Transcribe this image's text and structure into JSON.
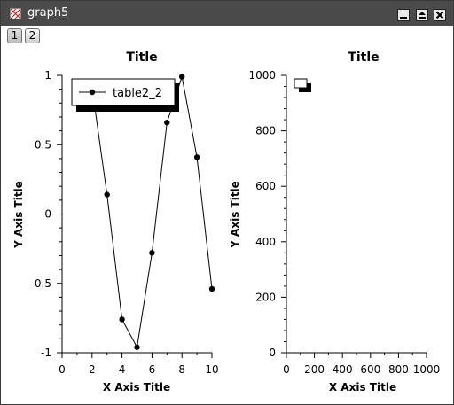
{
  "window": {
    "title": "graph5",
    "buttons": {
      "minimize": "minimize-icon",
      "maximize": "maximize-icon",
      "close": "close-icon"
    }
  },
  "toolbar": {
    "layer_buttons": [
      {
        "label": "1",
        "active": true
      },
      {
        "label": "2",
        "active": false
      }
    ]
  },
  "chart_data": [
    {
      "type": "line",
      "title": "Title",
      "xlabel": "X Axis Title",
      "ylabel": "Y Axis Title",
      "xlim": [
        0,
        10
      ],
      "ylim": [
        -1,
        1
      ],
      "xticks": [
        "0",
        "2",
        "4",
        "6",
        "8",
        "10"
      ],
      "yticks": [
        "-1",
        "-0.5",
        "0",
        "0.5",
        "1"
      ],
      "legend": {
        "placement": "top-left",
        "entries": [
          "table2_2"
        ]
      },
      "series": [
        {
          "name": "table2_2",
          "marker": "circle",
          "color": "#000000",
          "x": [
            2,
            3,
            4,
            5,
            6,
            7,
            8,
            9,
            10
          ],
          "y": [
            0.91,
            0.14,
            -0.76,
            -0.96,
            -0.28,
            0.66,
            0.99,
            0.41,
            -0.54
          ]
        }
      ]
    },
    {
      "type": "line",
      "title": "Title",
      "xlabel": "X Axis Title",
      "ylabel": "Y Axis Title",
      "xlim": [
        0,
        1000
      ],
      "ylim": [
        0,
        1000
      ],
      "xticks": [
        "0",
        "200",
        "400",
        "600",
        "800",
        "1000"
      ],
      "yticks": [
        "0",
        "200",
        "400",
        "600",
        "800",
        "1000"
      ],
      "legend": {
        "placement": "top-left",
        "entries": []
      },
      "series": []
    }
  ]
}
